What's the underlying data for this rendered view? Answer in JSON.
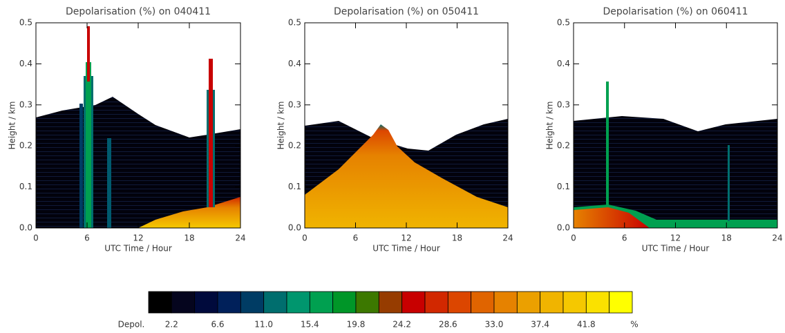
{
  "chart_data": [
    {
      "type": "heatmap",
      "title": "Depolarisation (%) on 040411",
      "xlabel": "UTC Time / Hour",
      "ylabel": "Height / km",
      "xlim": [
        0,
        24
      ],
      "xticks": [
        0,
        6,
        12,
        18,
        24
      ],
      "ylim": [
        0,
        0.5
      ],
      "yticks": [
        {
          "value": 0,
          "label": "0.0"
        },
        0.1,
        0.2,
        0.3,
        0.4,
        0.5
      ]
    },
    {
      "type": "heatmap",
      "title": "Depolarisation (%) on 050411",
      "xlabel": "UTC Time / Hour",
      "ylabel": "Height / km",
      "xlim": [
        0,
        24
      ],
      "xticks": [
        0,
        6,
        12,
        18,
        24
      ],
      "ylim": [
        0,
        0.5
      ],
      "yticks": [
        {
          "value": 0,
          "label": "0.0"
        },
        0.1,
        0.2,
        0.3,
        0.4,
        0.5
      ]
    },
    {
      "type": "heatmap",
      "title": "Depolarisation (%) on 060411",
      "xlabel": "UTC Time / Hour",
      "ylabel": "Height / km",
      "xlim": [
        0,
        24
      ],
      "xticks": [
        0,
        6,
        12,
        18,
        24
      ],
      "ylim": [
        0,
        0.5
      ],
      "yticks": [
        {
          "value": 0,
          "label": "0.0"
        },
        0.1,
        0.2,
        0.3,
        0.4,
        0.5
      ]
    }
  ],
  "colorbar": {
    "label": "Depol.",
    "unit": "%",
    "lim": [
      0,
      46.2
    ],
    "ticks": [
      2.2,
      6.6,
      {
        "value": 11,
        "label": "11.0"
      },
      15.4,
      19.8,
      24.2,
      28.6,
      {
        "value": 33,
        "label": "33.0"
      },
      37.4,
      41.8
    ],
    "colors": [
      "#000000",
      "#05051e",
      "#000a3c",
      "#00205a",
      "#003c64",
      "#006e6e",
      "#00966e",
      "#00a050",
      "#009628",
      "#3c7800",
      "#963c00",
      "#c80000",
      "#d22800",
      "#dc4600",
      "#e06400",
      "#e68200",
      "#eba000",
      "#f0b400",
      "#f5c800",
      "#fae100",
      "#ffff00"
    ]
  }
}
